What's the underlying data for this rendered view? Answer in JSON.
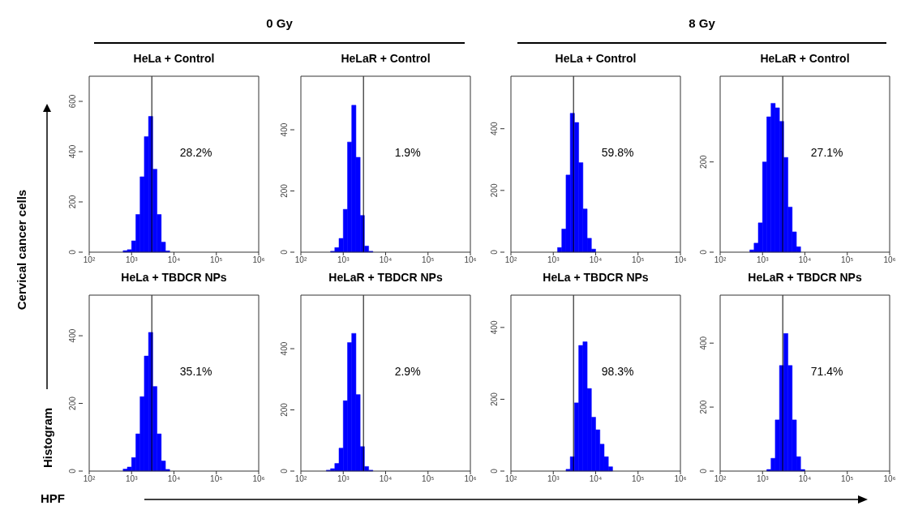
{
  "chart_data": [
    {
      "type": "histogram",
      "title": "HeLa + Control",
      "bins": [
        631,
        794,
        1000,
        1259,
        1585,
        1995,
        2512,
        3162,
        3981,
        5012,
        6310,
        7943
      ],
      "values": [
        6,
        10,
        45,
        150,
        300,
        460,
        540,
        330,
        150,
        40,
        5
      ],
      "color": "#0000ff",
      "log": "x",
      "xlim": [
        100,
        1000000
      ],
      "xticks": [
        {
          "value": 100,
          "label": "10²"
        },
        {
          "value": 1000,
          "label": "10³"
        },
        {
          "value": 10000,
          "label": "10⁴"
        },
        {
          "value": 100000,
          "label": "10⁵"
        },
        {
          "value": 1000000,
          "label": "10⁶"
        }
      ],
      "ylim": [
        0,
        700
      ],
      "yticks": [
        0,
        200,
        400,
        600
      ],
      "ref_lines": [
        {
          "axis": "x",
          "value": 3000,
          "color": "#000000"
        }
      ],
      "annotations": [
        "28.2%"
      ]
    },
    {
      "type": "histogram",
      "title": "HeLaR + Control",
      "bins": [
        501,
        631,
        794,
        1000,
        1259,
        1585,
        1995,
        2512,
        3162,
        3981,
        5012
      ],
      "values": [
        3,
        15,
        45,
        140,
        360,
        480,
        310,
        120,
        20,
        3
      ],
      "color": "#0000ff",
      "log": "x",
      "xlim": [
        100,
        1000000
      ],
      "xticks": [
        {
          "value": 100,
          "label": "10²"
        },
        {
          "value": 1000,
          "label": "10³"
        },
        {
          "value": 10000,
          "label": "10⁴"
        },
        {
          "value": 100000,
          "label": "10⁵"
        },
        {
          "value": 1000000,
          "label": "10⁶"
        }
      ],
      "ylim": [
        0,
        575
      ],
      "yticks": [
        0,
        200,
        400
      ],
      "ref_lines": [
        {
          "axis": "x",
          "value": 3000,
          "color": "#000000"
        }
      ],
      "annotations": [
        "1.9%"
      ]
    },
    {
      "type": "histogram",
      "title": "HeLa + Control",
      "bins": [
        1259,
        1585,
        1995,
        2512,
        3162,
        3981,
        5012,
        6310,
        7943,
        10000
      ],
      "values": [
        15,
        75,
        250,
        450,
        420,
        290,
        140,
        45,
        10
      ],
      "color": "#0000ff",
      "log": "x",
      "xlim": [
        100,
        1000000
      ],
      "xticks": [
        {
          "value": 100,
          "label": "10²"
        },
        {
          "value": 1000,
          "label": "10³"
        },
        {
          "value": 10000,
          "label": "10⁴"
        },
        {
          "value": 100000,
          "label": "10⁵"
        },
        {
          "value": 1000000,
          "label": "10⁶"
        }
      ],
      "ylim": [
        0,
        570
      ],
      "yticks": [
        0,
        200,
        400
      ],
      "ref_lines": [
        {
          "axis": "x",
          "value": 3000,
          "color": "#000000"
        }
      ],
      "annotations": [
        "59.8%"
      ]
    },
    {
      "type": "histogram",
      "title": "HeLaR + Control",
      "bins": [
        501,
        631,
        794,
        1000,
        1259,
        1585,
        1995,
        2512,
        3162,
        3981,
        5012,
        6310,
        7943
      ],
      "values": [
        5,
        20,
        65,
        200,
        300,
        330,
        320,
        290,
        210,
        100,
        45,
        12
      ],
      "color": "#0000ff",
      "log": "x",
      "xlim": [
        100,
        1000000
      ],
      "xticks": [
        {
          "value": 100,
          "label": "10²"
        },
        {
          "value": 1000,
          "label": "10³"
        },
        {
          "value": 10000,
          "label": "10⁴"
        },
        {
          "value": 100000,
          "label": "10⁵"
        },
        {
          "value": 1000000,
          "label": "10⁶"
        }
      ],
      "ylim": [
        0,
        390
      ],
      "yticks": [
        0,
        200
      ],
      "ref_lines": [
        {
          "axis": "x",
          "value": 3000,
          "color": "#000000"
        }
      ],
      "annotations": [
        "27.1%"
      ]
    },
    {
      "type": "histogram",
      "title": "HeLa + TBDCR NPs",
      "bins": [
        631,
        794,
        1000,
        1259,
        1585,
        1995,
        2512,
        3162,
        3981,
        5012,
        6310,
        7943
      ],
      "values": [
        6,
        12,
        40,
        110,
        220,
        340,
        410,
        250,
        110,
        30,
        5
      ],
      "color": "#0000ff",
      "log": "x",
      "xlim": [
        100,
        1000000
      ],
      "xticks": [
        {
          "value": 100,
          "label": "10²"
        },
        {
          "value": 1000,
          "label": "10³"
        },
        {
          "value": 10000,
          "label": "10⁴"
        },
        {
          "value": 100000,
          "label": "10⁵"
        },
        {
          "value": 1000000,
          "label": "10⁶"
        }
      ],
      "ylim": [
        0,
        520
      ],
      "yticks": [
        0,
        200,
        400
      ],
      "ref_lines": [
        {
          "axis": "x",
          "value": 3000,
          "color": "#000000"
        }
      ],
      "annotations": [
        "35.1%"
      ]
    },
    {
      "type": "histogram",
      "title": "HeLaR + TBDCR NPs",
      "bins": [
        398,
        501,
        631,
        794,
        1000,
        1259,
        1585,
        1995,
        2512,
        3162,
        3981,
        5012
      ],
      "values": [
        3,
        8,
        25,
        75,
        230,
        420,
        450,
        250,
        80,
        15,
        3
      ],
      "color": "#0000ff",
      "log": "x",
      "xlim": [
        100,
        1000000
      ],
      "xticks": [
        {
          "value": 100,
          "label": "10²"
        },
        {
          "value": 1000,
          "label": "10³"
        },
        {
          "value": 10000,
          "label": "10⁴"
        },
        {
          "value": 100000,
          "label": "10⁵"
        },
        {
          "value": 1000000,
          "label": "10⁶"
        }
      ],
      "ylim": [
        0,
        575
      ],
      "yticks": [
        0,
        200,
        400
      ],
      "ref_lines": [
        {
          "axis": "x",
          "value": 3000,
          "color": "#000000"
        }
      ],
      "annotations": [
        "2.9%"
      ]
    },
    {
      "type": "histogram",
      "title": "HeLa + TBDCR NPs",
      "bins": [
        1995,
        2512,
        3162,
        3981,
        5012,
        6310,
        7943,
        10000,
        12589,
        15849,
        19953,
        25119
      ],
      "values": [
        5,
        40,
        190,
        350,
        360,
        230,
        150,
        115,
        75,
        40,
        12
      ],
      "color": "#0000ff",
      "log": "x",
      "xlim": [
        100,
        1000000
      ],
      "xticks": [
        {
          "value": 100,
          "label": "10²"
        },
        {
          "value": 1000,
          "label": "10³"
        },
        {
          "value": 10000,
          "label": "10⁴"
        },
        {
          "value": 100000,
          "label": "10⁵"
        },
        {
          "value": 1000000,
          "label": "10⁶"
        }
      ],
      "ylim": [
        0,
        490
      ],
      "yticks": [
        0,
        200,
        400
      ],
      "ref_lines": [
        {
          "axis": "x",
          "value": 3000,
          "color": "#000000"
        }
      ],
      "annotations": [
        "98.3%"
      ]
    },
    {
      "type": "histogram",
      "title": "HeLaR + TBDCR NPs",
      "bins": [
        1259,
        1585,
        1995,
        2512,
        3162,
        3981,
        5012,
        6310,
        7943,
        10000
      ],
      "values": [
        5,
        40,
        160,
        330,
        430,
        330,
        160,
        45,
        5
      ],
      "color": "#0000ff",
      "log": "x",
      "xlim": [
        100,
        1000000
      ],
      "xticks": [
        {
          "value": 100,
          "label": "10²"
        },
        {
          "value": 1000,
          "label": "10³"
        },
        {
          "value": 10000,
          "label": "10⁴"
        },
        {
          "value": 100000,
          "label": "10⁵"
        },
        {
          "value": 1000000,
          "label": "10⁶"
        }
      ],
      "ylim": [
        0,
        550
      ],
      "yticks": [
        0,
        200,
        400
      ],
      "ref_lines": [
        {
          "axis": "x",
          "value": 3000,
          "color": "#000000"
        }
      ],
      "annotations": [
        "71.4%"
      ]
    },
    {
      "type": "other",
      "xlabel": "HPF",
      "ylabel": "Histogram",
      "annotations": [
        "0 Gy",
        "8 Gy",
        "Cervical cancer cells"
      ]
    }
  ]
}
